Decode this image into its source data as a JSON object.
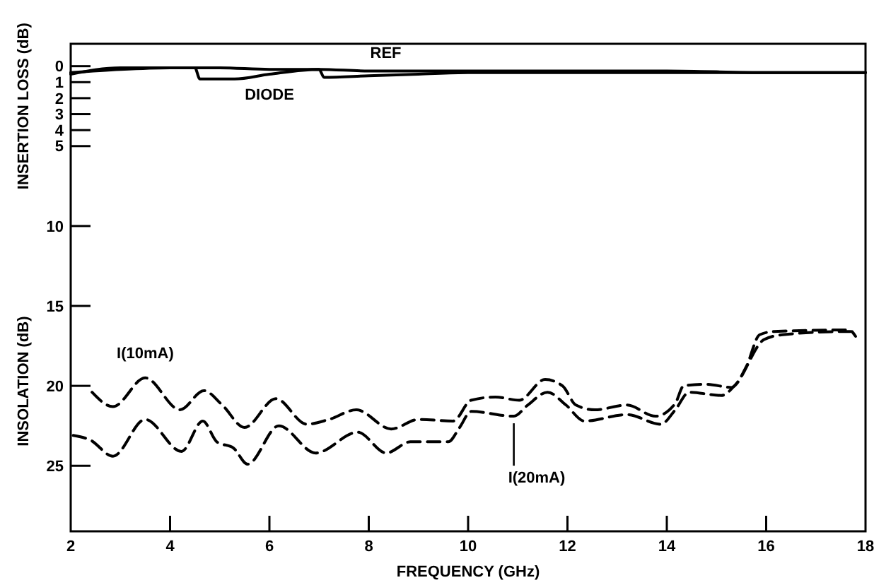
{
  "chart_data": {
    "type": "line",
    "xlabel": "FREQUENCY (GHz)",
    "ylabel": "INSERTION LOSS (dB)",
    "xlim": [
      2,
      18
    ],
    "xticks": [
      2,
      4,
      6,
      8,
      10,
      12,
      14,
      16,
      18
    ],
    "ylim": [
      29.1,
      -1.4
    ],
    "yticks": [
      0,
      1,
      2,
      3,
      4,
      5,
      10,
      15,
      20,
      25
    ],
    "grid": false,
    "marker": "none",
    "series": [
      {
        "name": "REF",
        "color": "#000000",
        "line_style": "solid",
        "x": [
          2,
          3,
          4,
          5,
          6,
          7,
          8,
          10,
          12,
          14,
          16,
          18
        ],
        "values": [
          0.4,
          0.2,
          0.1,
          0.1,
          0.2,
          0.2,
          0.3,
          0.3,
          0.3,
          0.3,
          0.4,
          0.4
        ]
      },
      {
        "name": "DIODE",
        "color": "#000000",
        "line_style": "solid",
        "x": [
          2,
          3,
          4.5,
          4.6,
          5.3,
          6,
          7,
          7.1,
          8,
          9,
          10,
          12,
          14,
          18
        ],
        "values": [
          0.5,
          0.1,
          0.1,
          0.8,
          0.8,
          0.5,
          0.2,
          0.7,
          0.6,
          0.5,
          0.4,
          0.4,
          0.4,
          0.4
        ]
      },
      {
        "name": "I(10mA)",
        "color": "#000000",
        "line_style": "dashed",
        "x": [
          2.43,
          2.85,
          3.5,
          4.2,
          4.68,
          5.05,
          5.5,
          6.13,
          6.75,
          7.2,
          7.75,
          8.45,
          9.0,
          9.7,
          10.06,
          10.55,
          11.03,
          11.55,
          11.9,
          12.17,
          12.55,
          13.2,
          13.77,
          14.17,
          14.34,
          14.8,
          15.3,
          15.6,
          15.87,
          16.16,
          17.67,
          17.8
        ],
        "values": [
          20.4,
          21.3,
          19.5,
          21.5,
          20.3,
          21.2,
          22.6,
          20.8,
          22.4,
          22.1,
          21.5,
          22.7,
          22.1,
          22.2,
          20.9,
          20.7,
          20.9,
          19.6,
          20.0,
          21.2,
          21.5,
          21.2,
          21.9,
          21.1,
          20.0,
          19.9,
          20.1,
          18.8,
          16.8,
          16.6,
          16.5,
          16.9
        ]
      },
      {
        "name": "I(20mA)",
        "color": "#000000",
        "line_style": "dashed",
        "x": [
          2.05,
          2.4,
          2.85,
          3.5,
          4.23,
          4.66,
          4.94,
          5.28,
          5.56,
          6.19,
          6.93,
          7.78,
          8.35,
          8.84,
          9.6,
          9.83,
          10.06,
          10.92,
          11.2,
          11.6,
          11.97,
          12.34,
          13.2,
          13.88,
          14.17,
          14.45,
          15.1,
          15.39,
          15.96,
          16.33,
          17.58,
          17.7
        ],
        "values": [
          23.1,
          23.4,
          24.4,
          22.1,
          24.1,
          22.2,
          23.5,
          23.9,
          24.9,
          22.5,
          24.2,
          22.9,
          24.2,
          23.5,
          23.5,
          22.6,
          21.6,
          21.9,
          21.2,
          20.4,
          21.2,
          22.2,
          21.8,
          22.4,
          21.5,
          20.4,
          20.6,
          19.9,
          17.1,
          16.8,
          16.6,
          16.6
        ]
      }
    ],
    "annotations": [
      "INSOLATION (dB)"
    ]
  }
}
